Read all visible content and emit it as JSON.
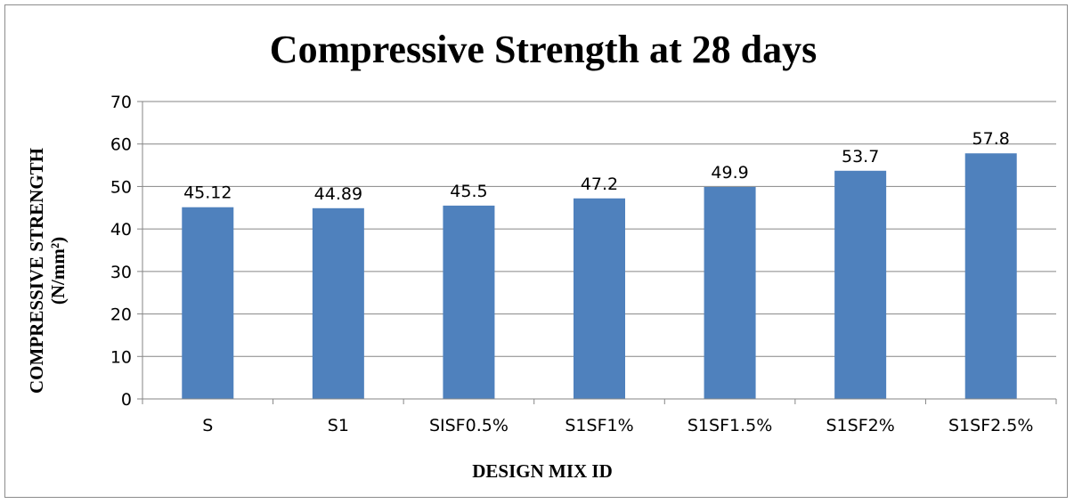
{
  "chart_data": {
    "type": "bar",
    "title": "Compressive Strength at 28 days",
    "xlabel": "DESIGN MIX ID",
    "ylabel_line1": "COMPRESSIVE STRENGTH",
    "ylabel_line2": "(N/mm²)",
    "categories": [
      "S",
      "S1",
      "SISF0.5%",
      "S1SF1%",
      "S1SF1.5%",
      "S1SF2%",
      "S1SF2.5%"
    ],
    "values": [
      45.12,
      44.89,
      45.5,
      47.2,
      49.9,
      53.7,
      57.8
    ],
    "value_labels": [
      "45.12",
      "44.89",
      "45.5",
      "47.2",
      "49.9",
      "53.7",
      "57.8"
    ],
    "ylim": [
      0,
      70
    ],
    "yticks": [
      0,
      10,
      20,
      30,
      40,
      50,
      60,
      70
    ],
    "grid": true,
    "legend": "none",
    "bar_color": "#4f81bd",
    "grid_color": "#868686"
  }
}
